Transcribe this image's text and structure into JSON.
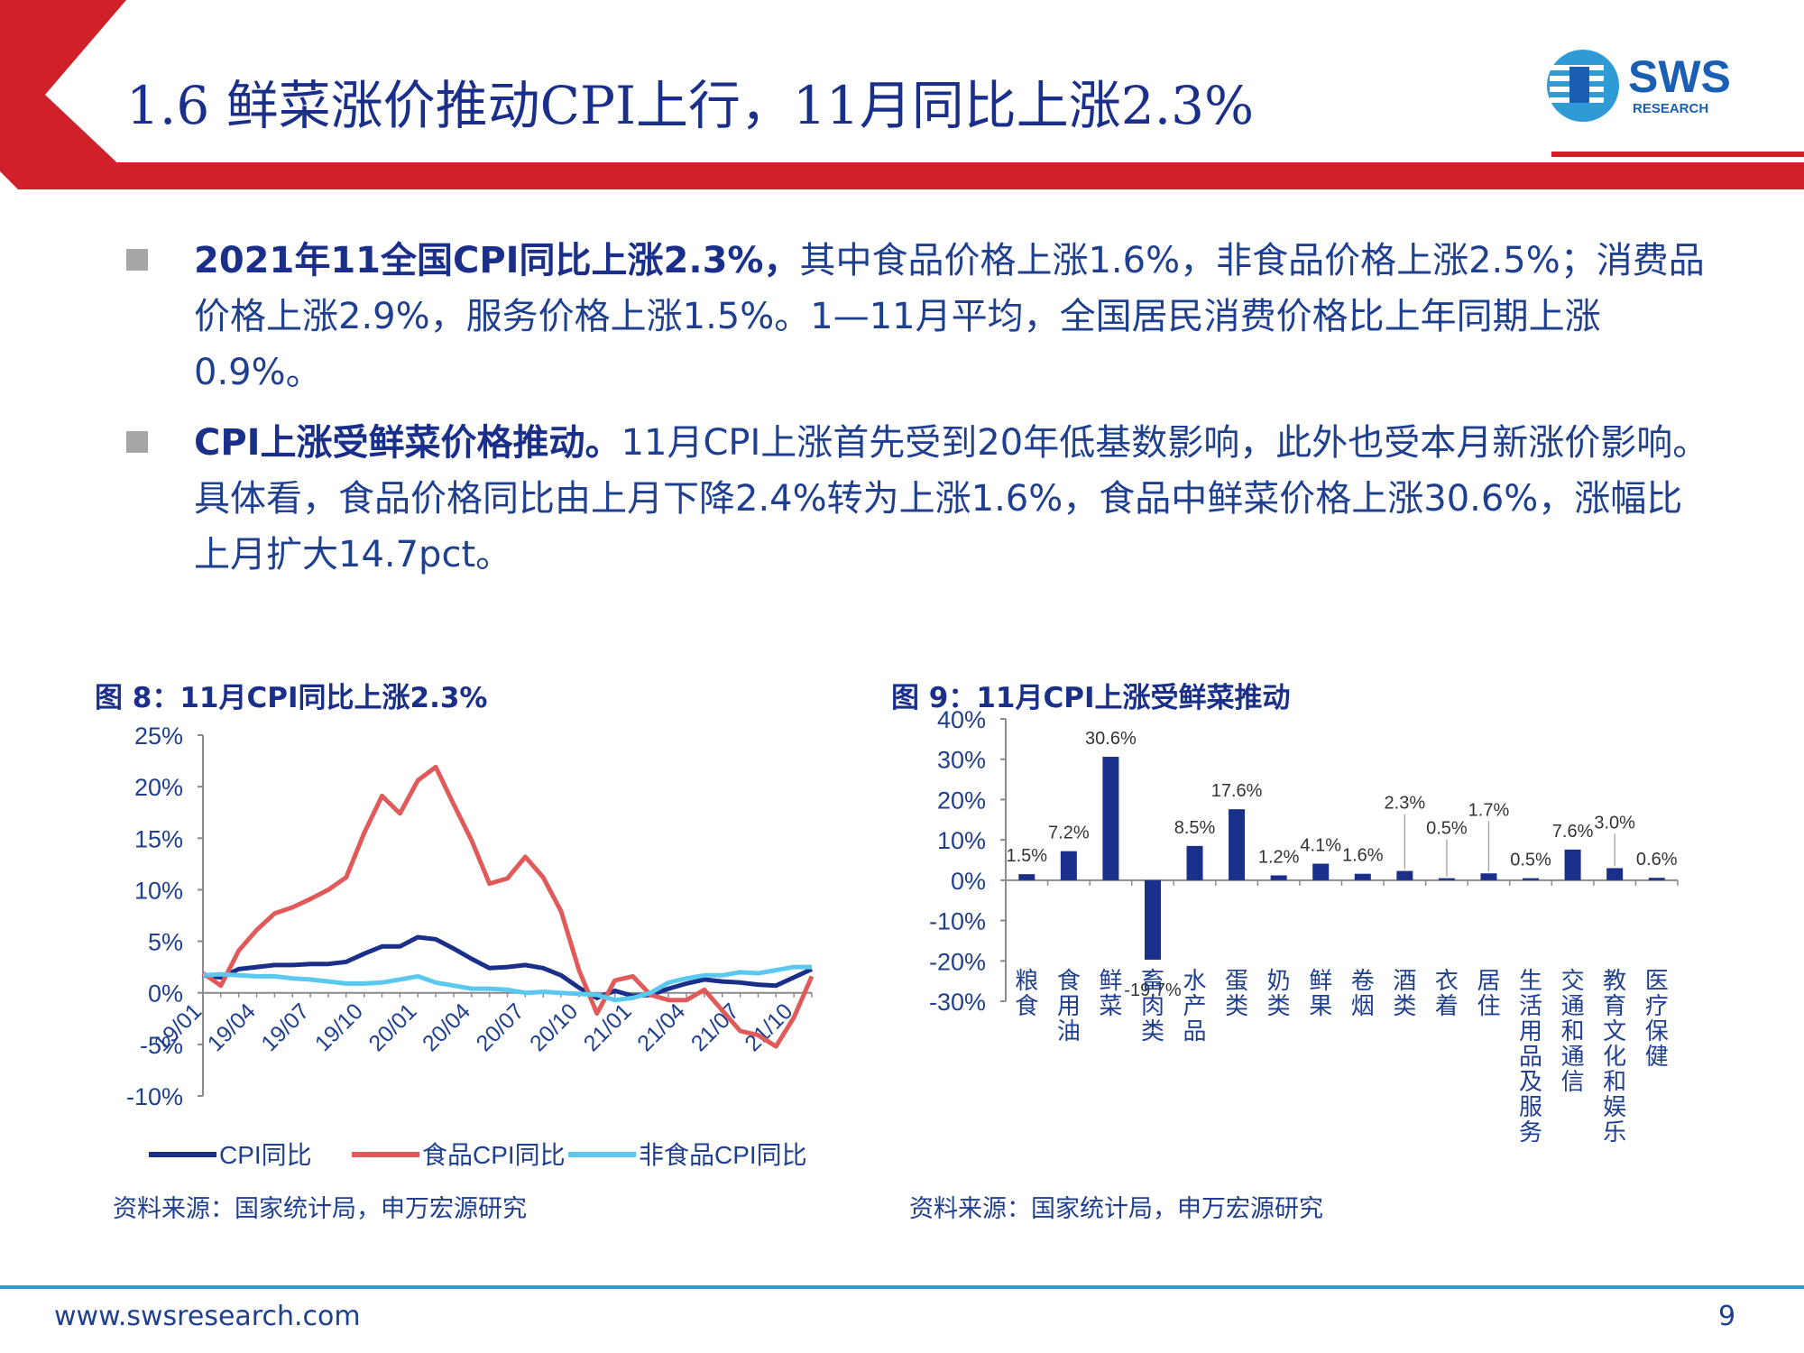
{
  "slide": {
    "title": "1.6 鲜菜涨价推动CPI上行，11月同比上涨2.3%",
    "logo_text": "SWS",
    "logo_subtext": "RESEARCH",
    "colors": {
      "brand_red": "#d0202a",
      "title_blue": "#1a2f8a",
      "text_blue": "#1f3f8f",
      "accent_blue": "#2e9bd6"
    }
  },
  "bullets": [
    {
      "bold": "2021年11全国CPI同比上涨2.3%，",
      "text": "其中食品价格上涨1.6%，非食品价格上涨2.5%；消费品价格上涨2.9%，服务价格上涨1.5%。1—11月平均，全国居民消费价格比上年同期上涨0.9%。"
    },
    {
      "bold": "CPI上涨受鲜菜价格推动。",
      "text": "11月CPI上涨首先受到20年低基数影响，此外也受本月新涨价影响。具体看，食品价格同比由上月下降2.4%转为上涨1.6%，食品中鲜菜价格上涨30.6%，涨幅比上月扩大14.7pct。"
    }
  ],
  "figures": {
    "fig8": {
      "title": "图 8：11月CPI同比上涨2.3%",
      "source": "资料来源：国家统计局，申万宏源研究"
    },
    "fig9": {
      "title": "图 9：11月CPI上涨受鲜菜推动",
      "source": "资料来源：国家统计局，申万宏源研究"
    }
  },
  "footer": {
    "url": "www.swsresearch.com",
    "page": "9"
  },
  "chart_data": [
    {
      "type": "line",
      "title": "图 8：11月CPI同比上涨2.3%",
      "x": [
        "19/01",
        "19/02",
        "19/03",
        "19/04",
        "19/05",
        "19/06",
        "19/07",
        "19/08",
        "19/09",
        "19/10",
        "19/11",
        "19/12",
        "20/01",
        "20/02",
        "20/03",
        "20/04",
        "20/05",
        "20/06",
        "20/07",
        "20/08",
        "20/09",
        "20/10",
        "20/11",
        "20/12",
        "21/01",
        "21/02",
        "21/03",
        "21/04",
        "21/05",
        "21/06",
        "21/07",
        "21/08",
        "21/09",
        "21/10",
        "21/11"
      ],
      "x_tick_labels": [
        "19/01",
        "19/04",
        "19/07",
        "19/10",
        "20/01",
        "20/04",
        "20/07",
        "20/10",
        "21/01",
        "21/04",
        "21/07",
        "21/10"
      ],
      "y_tick_labels": [
        "25%",
        "20%",
        "15%",
        "10%",
        "5%",
        "0%",
        "-5%",
        "-10%"
      ],
      "ylim": [
        -10,
        25
      ],
      "grid": false,
      "legend_position": "bottom",
      "series": [
        {
          "name": "CPI同比",
          "color": "#1a2f8a",
          "values": [
            1.7,
            1.5,
            2.3,
            2.5,
            2.7,
            2.7,
            2.8,
            2.8,
            3.0,
            3.8,
            4.5,
            4.5,
            5.4,
            5.2,
            4.3,
            3.3,
            2.4,
            2.5,
            2.7,
            2.4,
            1.7,
            0.5,
            -0.5,
            0.2,
            -0.3,
            -0.2,
            0.4,
            0.9,
            1.3,
            1.1,
            1.0,
            0.8,
            0.7,
            1.5,
            2.3
          ]
        },
        {
          "name": "食品CPI同比",
          "color": "#e05a5a",
          "values": [
            1.9,
            0.7,
            4.1,
            6.1,
            7.7,
            8.3,
            9.1,
            10.0,
            11.2,
            15.5,
            19.1,
            17.4,
            20.6,
            21.9,
            18.3,
            14.8,
            10.6,
            11.1,
            13.2,
            11.2,
            7.9,
            2.2,
            -2.0,
            1.2,
            1.6,
            -0.2,
            -0.7,
            -0.7,
            0.3,
            -1.7,
            -3.7,
            -4.1,
            -5.2,
            -2.4,
            1.6
          ]
        },
        {
          "name": "非食品CPI同比",
          "color": "#5bc8f0",
          "values": [
            1.7,
            1.8,
            1.7,
            1.6,
            1.6,
            1.4,
            1.3,
            1.1,
            0.9,
            0.9,
            1.0,
            1.3,
            1.6,
            1.0,
            0.7,
            0.4,
            0.4,
            0.3,
            0.0,
            0.1,
            0.0,
            -0.1,
            -0.2,
            -0.7,
            -0.5,
            0.0,
            1.0,
            1.4,
            1.7,
            1.7,
            2.0,
            1.9,
            2.2,
            2.5,
            2.5
          ]
        }
      ]
    },
    {
      "type": "bar",
      "title": "图 9：11月CPI上涨受鲜菜推动",
      "categories": [
        "粮食",
        "食用油",
        "鲜菜",
        "畜肉类",
        "水产品",
        "蛋类",
        "奶类",
        "鲜果",
        "卷烟",
        "酒类",
        "衣着",
        "居住",
        "生活用品及服务",
        "交通和通信",
        "教育文化和娱乐",
        "医疗保健"
      ],
      "values": [
        1.5,
        7.2,
        30.6,
        -19.7,
        8.5,
        17.6,
        1.2,
        4.1,
        1.6,
        2.3,
        0.5,
        1.7,
        0.5,
        7.6,
        3.0,
        0.6
      ],
      "value_labels": [
        "1.5%",
        "7.2%",
        "30.6%",
        "-19.7%",
        "8.5%",
        "17.6%",
        "1.2%",
        "4.1%",
        "1.6%",
        "2.3%",
        "0.5%",
        "1.7%",
        "0.5%",
        "7.6%",
        "3.0%",
        "0.6%"
      ],
      "y_tick_labels": [
        "40%",
        "30%",
        "20%",
        "10%",
        "0%",
        "-10%",
        "-20%",
        "-30%"
      ],
      "ylim": [
        -30,
        40
      ],
      "bar_color": "#1a2f8a",
      "grid": false
    }
  ]
}
